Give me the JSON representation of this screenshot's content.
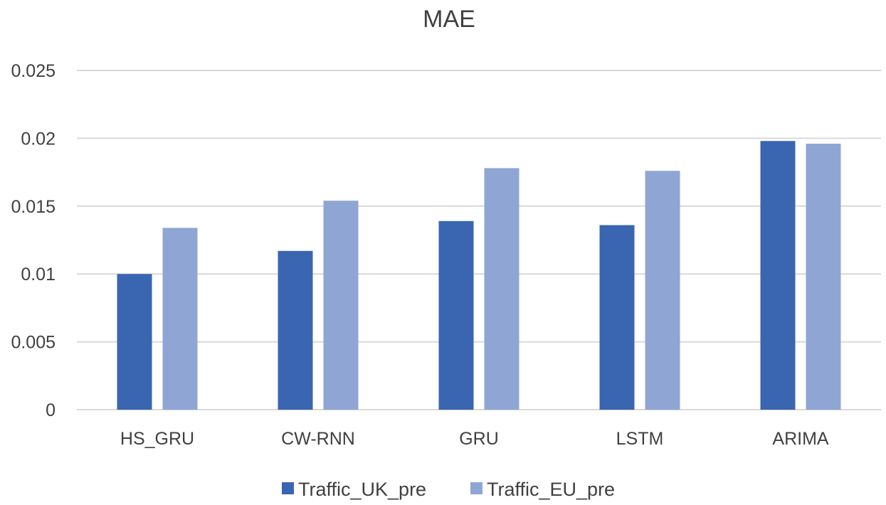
{
  "chart_data": {
    "type": "bar",
    "title": "MAE",
    "xlabel": "",
    "ylabel": "",
    "ylim": [
      0,
      0.025
    ],
    "yticks": [
      "0",
      "0.005",
      "0.01",
      "0.015",
      "0.02",
      "0.025"
    ],
    "ytick_values": [
      0,
      0.005,
      0.01,
      0.015,
      0.02,
      0.025
    ],
    "grid": true,
    "legend_position": "bottom",
    "categories": [
      "HS_GRU",
      "CW-RNN",
      "GRU",
      "LSTM",
      "ARIMA"
    ],
    "series": [
      {
        "name": "Traffic_UK_pre",
        "color": "#3a65b0",
        "values": [
          0.01,
          0.0117,
          0.0139,
          0.0136,
          0.0198
        ]
      },
      {
        "name": "Traffic_EU_pre",
        "color": "#8fa6d5",
        "values": [
          0.0134,
          0.0154,
          0.0178,
          0.0176,
          0.0196
        ]
      }
    ]
  }
}
